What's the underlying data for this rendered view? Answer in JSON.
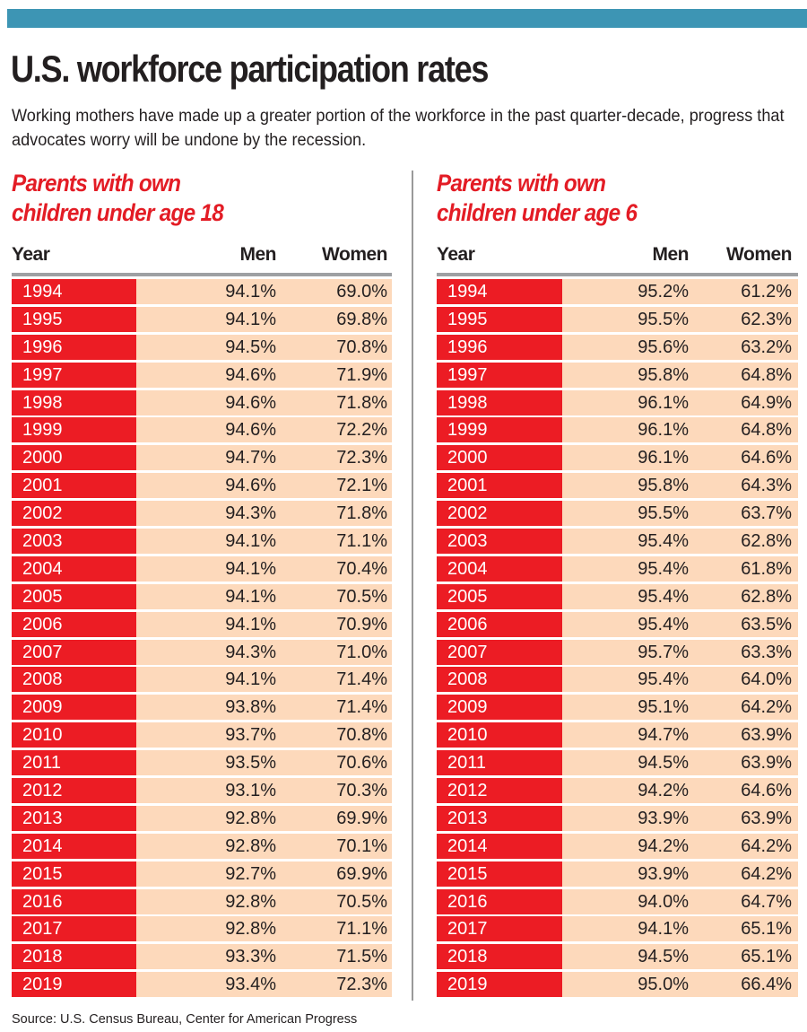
{
  "header": {
    "banner_color": "#3d95b4",
    "title": "U.S. workforce participation rates",
    "subtitle": "Working mothers have made up a greater portion of the workforce in the past quarter-decade, progress that advocates worry will be undone by the recession."
  },
  "colors": {
    "accent_red": "#ec1c24",
    "row_fill": "#fdd9bb",
    "heading_red": "#e31c25"
  },
  "tables": [
    {
      "heading_line1": "Parents with own",
      "heading_line2": "children under age 18",
      "columns": [
        "Year",
        "Men",
        "Women"
      ],
      "rows": [
        [
          "1994",
          "94.1%",
          "69.0%"
        ],
        [
          "1995",
          "94.1%",
          "69.8%"
        ],
        [
          "1996",
          "94.5%",
          "70.8%"
        ],
        [
          "1997",
          "94.6%",
          "71.9%"
        ],
        [
          "1998",
          "94.6%",
          "71.8%"
        ],
        [
          "1999",
          "94.6%",
          "72.2%"
        ],
        [
          "2000",
          "94.7%",
          "72.3%"
        ],
        [
          "2001",
          "94.6%",
          "72.1%"
        ],
        [
          "2002",
          "94.3%",
          "71.8%"
        ],
        [
          "2003",
          "94.1%",
          "71.1%"
        ],
        [
          "2004",
          "94.1%",
          "70.4%"
        ],
        [
          "2005",
          "94.1%",
          "70.5%"
        ],
        [
          "2006",
          "94.1%",
          "70.9%"
        ],
        [
          "2007",
          "94.3%",
          "71.0%"
        ],
        [
          "2008",
          "94.1%",
          "71.4%"
        ],
        [
          "2009",
          "93.8%",
          "71.4%"
        ],
        [
          "2010",
          "93.7%",
          "70.8%"
        ],
        [
          "2011",
          "93.5%",
          "70.6%"
        ],
        [
          "2012",
          "93.1%",
          "70.3%"
        ],
        [
          "2013",
          "92.8%",
          "69.9%"
        ],
        [
          "2014",
          "92.8%",
          "70.1%"
        ],
        [
          "2015",
          "92.7%",
          "69.9%"
        ],
        [
          "2016",
          "92.8%",
          "70.5%"
        ],
        [
          "2017",
          "92.8%",
          "71.1%"
        ],
        [
          "2018",
          "93.3%",
          "71.5%"
        ],
        [
          "2019",
          "93.4%",
          "72.3%"
        ]
      ]
    },
    {
      "heading_line1": "Parents with own",
      "heading_line2": "children under age 6",
      "columns": [
        "Year",
        "Men",
        "Women"
      ],
      "rows": [
        [
          "1994",
          "95.2%",
          "61.2%"
        ],
        [
          "1995",
          "95.5%",
          "62.3%"
        ],
        [
          "1996",
          "95.6%",
          "63.2%"
        ],
        [
          "1997",
          "95.8%",
          "64.8%"
        ],
        [
          "1998",
          "96.1%",
          "64.9%"
        ],
        [
          "1999",
          "96.1%",
          "64.8%"
        ],
        [
          "2000",
          "96.1%",
          "64.6%"
        ],
        [
          "2001",
          "95.8%",
          "64.3%"
        ],
        [
          "2002",
          "95.5%",
          "63.7%"
        ],
        [
          "2003",
          "95.4%",
          "62.8%"
        ],
        [
          "2004",
          "95.4%",
          "61.8%"
        ],
        [
          "2005",
          "95.4%",
          "62.8%"
        ],
        [
          "2006",
          "95.4%",
          "63.5%"
        ],
        [
          "2007",
          "95.7%",
          "63.3%"
        ],
        [
          "2008",
          "95.4%",
          "64.0%"
        ],
        [
          "2009",
          "95.1%",
          "64.2%"
        ],
        [
          "2010",
          "94.7%",
          "63.9%"
        ],
        [
          "2011",
          "94.5%",
          "63.9%"
        ],
        [
          "2012",
          "94.2%",
          "64.6%"
        ],
        [
          "2013",
          "93.9%",
          "63.9%"
        ],
        [
          "2014",
          "94.2%",
          "64.2%"
        ],
        [
          "2015",
          "93.9%",
          "64.2%"
        ],
        [
          "2016",
          "94.0%",
          "64.7%"
        ],
        [
          "2017",
          "94.1%",
          "65.1%"
        ],
        [
          "2018",
          "94.5%",
          "65.1%"
        ],
        [
          "2019",
          "95.0%",
          "66.4%"
        ]
      ]
    }
  ],
  "footer": {
    "source": "Source: U.S. Census Bureau, Center for American Progress"
  }
}
